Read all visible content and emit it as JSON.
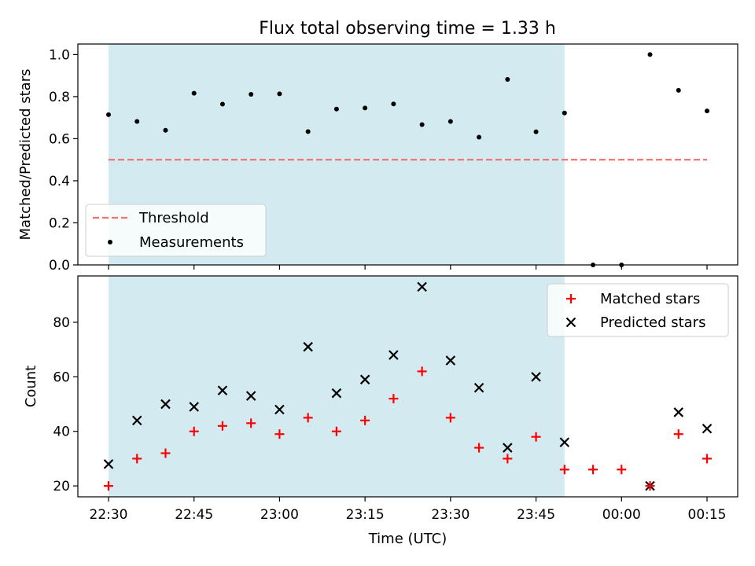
{
  "chart_data": [
    {
      "type": "scatter",
      "title": "Flux total observing time = 1.33 h",
      "ylabel": "Matched/Predicted stars",
      "ylim": [
        0,
        1.05
      ],
      "yticks": [
        "0.0",
        "0.2",
        "0.4",
        "0.6",
        "0.8",
        "1.0"
      ],
      "highlight_span": [
        "22:30",
        "23:50"
      ],
      "highlight_color": "#d3ebf0",
      "legend_position": "lower-left",
      "threshold": {
        "name": "Threshold",
        "value": 0.5,
        "x_range": [
          "22:30",
          "00:15"
        ],
        "color": "#f07070"
      },
      "series": [
        {
          "name": "Measurements",
          "color": "#000000",
          "x": [
            "22:30",
            "22:35",
            "22:40",
            "22:45",
            "22:50",
            "22:55",
            "23:00",
            "23:05",
            "23:10",
            "23:15",
            "23:20",
            "23:25",
            "23:30",
            "23:35",
            "23:40",
            "23:45",
            "23:50",
            "23:55",
            "00:00",
            "00:05",
            "00:10",
            "00:15"
          ],
          "y": [
            0.714,
            0.682,
            0.64,
            0.816,
            0.764,
            0.811,
            0.813,
            0.634,
            0.741,
            0.746,
            0.765,
            0.667,
            0.682,
            0.607,
            0.882,
            0.633,
            0.722,
            0.0,
            0.0,
            1.0,
            0.83,
            0.732
          ]
        }
      ]
    },
    {
      "type": "scatter",
      "xlabel": "Time (UTC)",
      "ylabel": "Count",
      "ylim": [
        16,
        97
      ],
      "yticks": [
        "20",
        "40",
        "60",
        "80"
      ],
      "xticks": [
        "22:30",
        "22:45",
        "23:00",
        "23:15",
        "23:30",
        "23:45",
        "00:00",
        "00:15"
      ],
      "legend_position": "top-right",
      "series": [
        {
          "name": "Matched stars",
          "marker": "plus",
          "color": "#ff0000",
          "x": [
            "22:30",
            "22:35",
            "22:40",
            "22:45",
            "22:50",
            "22:55",
            "23:00",
            "23:05",
            "23:10",
            "23:15",
            "23:20",
            "23:25",
            "23:30",
            "23:35",
            "23:40",
            "23:45",
            "23:50",
            "23:55",
            "00:00",
            "00:05",
            "00:10",
            "00:15"
          ],
          "y": [
            20,
            30,
            32,
            40,
            42,
            43,
            39,
            45,
            40,
            44,
            52,
            62,
            45,
            34,
            30,
            38,
            26,
            26,
            26,
            20,
            39,
            30
          ]
        },
        {
          "name": "Predicted stars",
          "marker": "x",
          "color": "#000000",
          "x": [
            "22:30",
            "22:35",
            "22:40",
            "22:45",
            "22:50",
            "22:55",
            "23:00",
            "23:05",
            "23:10",
            "23:15",
            "23:20",
            "23:25",
            "23:30",
            "23:35",
            "23:40",
            "23:45",
            "23:50",
            "00:05",
            "00:10",
            "00:15"
          ],
          "y": [
            28,
            44,
            50,
            49,
            55,
            53,
            48,
            71,
            54,
            59,
            68,
            93,
            66,
            56,
            34,
            60,
            36,
            20,
            47,
            41
          ]
        }
      ]
    }
  ]
}
